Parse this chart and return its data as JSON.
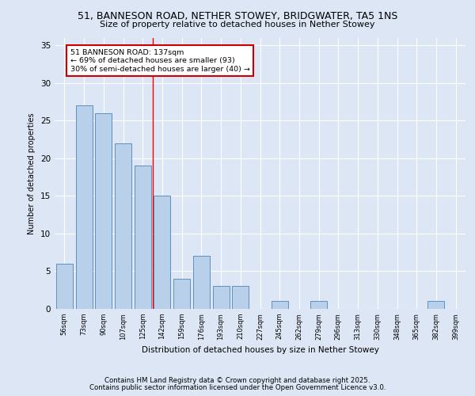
{
  "title1": "51, BANNESON ROAD, NETHER STOWEY, BRIDGWATER, TA5 1NS",
  "title2": "Size of property relative to detached houses in Nether Stowey",
  "xlabel": "Distribution of detached houses by size in Nether Stowey",
  "ylabel": "Number of detached properties",
  "categories": [
    "56sqm",
    "73sqm",
    "90sqm",
    "107sqm",
    "125sqm",
    "142sqm",
    "159sqm",
    "176sqm",
    "193sqm",
    "210sqm",
    "227sqm",
    "245sqm",
    "262sqm",
    "279sqm",
    "296sqm",
    "313sqm",
    "330sqm",
    "348sqm",
    "365sqm",
    "382sqm",
    "399sqm"
  ],
  "values": [
    6,
    27,
    26,
    22,
    19,
    15,
    4,
    7,
    3,
    3,
    0,
    1,
    0,
    1,
    0,
    0,
    0,
    0,
    0,
    1,
    0
  ],
  "bar_color": "#b8d0ea",
  "bar_edge_color": "#6090c0",
  "vline_x": 4.5,
  "annotation_text": "51 BANNESON ROAD: 137sqm\n← 69% of detached houses are smaller (93)\n30% of semi-detached houses are larger (40) →",
  "annotation_box_color": "#ffffff",
  "annotation_box_edge_color": "#cc0000",
  "ylim": [
    0,
    36
  ],
  "yticks": [
    0,
    5,
    10,
    15,
    20,
    25,
    30,
    35
  ],
  "bg_color": "#dce6f5",
  "plot_bg_color": "#dce6f5",
  "footer1": "Contains HM Land Registry data © Crown copyright and database right 2025.",
  "footer2": "Contains public sector information licensed under the Open Government Licence v3.0."
}
